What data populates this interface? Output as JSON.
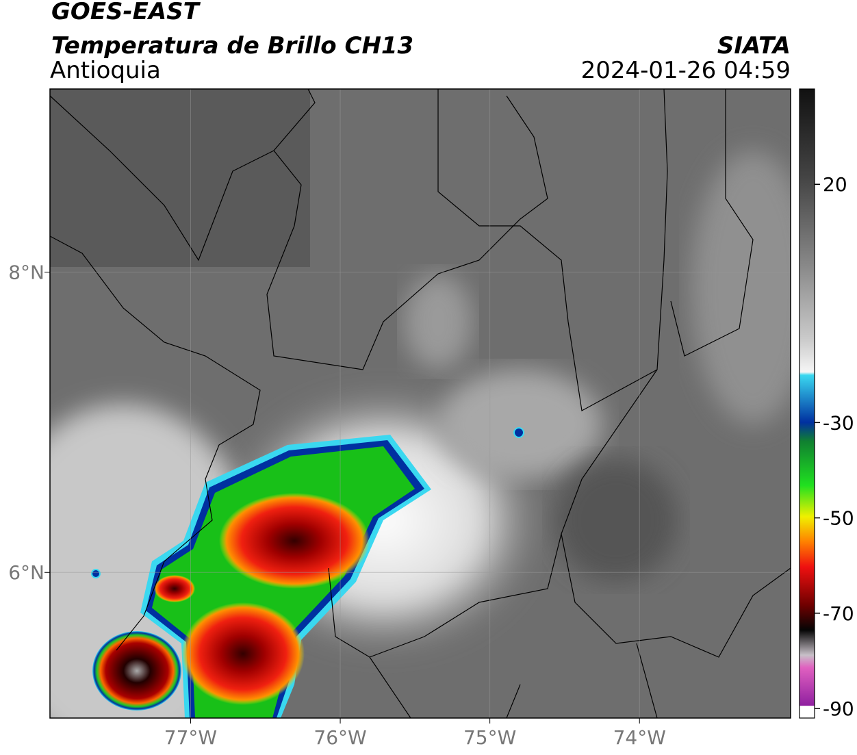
{
  "header": {
    "satellite": "GOES-EAST",
    "product": "Temperatura de Brillo CH13",
    "region": "Antioquia",
    "source": "SIATA",
    "datetime": "2024-01-26 04:59"
  },
  "map": {
    "xlim": [
      -77.94,
      -72.99
    ],
    "ylim": [
      5.03,
      9.22
    ],
    "xticks": [
      {
        "value": -77,
        "label": "77°W"
      },
      {
        "value": -76,
        "label": "76°W"
      },
      {
        "value": -75,
        "label": "75°W"
      },
      {
        "value": -74,
        "label": "74°W"
      }
    ],
    "yticks": [
      {
        "value": 8,
        "label": "8°N"
      },
      {
        "value": 6,
        "label": "6°N"
      }
    ]
  },
  "colorbar": {
    "lim": [
      -92,
      40
    ],
    "ticks": [
      20,
      -30,
      -50,
      -70,
      -90
    ]
  }
}
